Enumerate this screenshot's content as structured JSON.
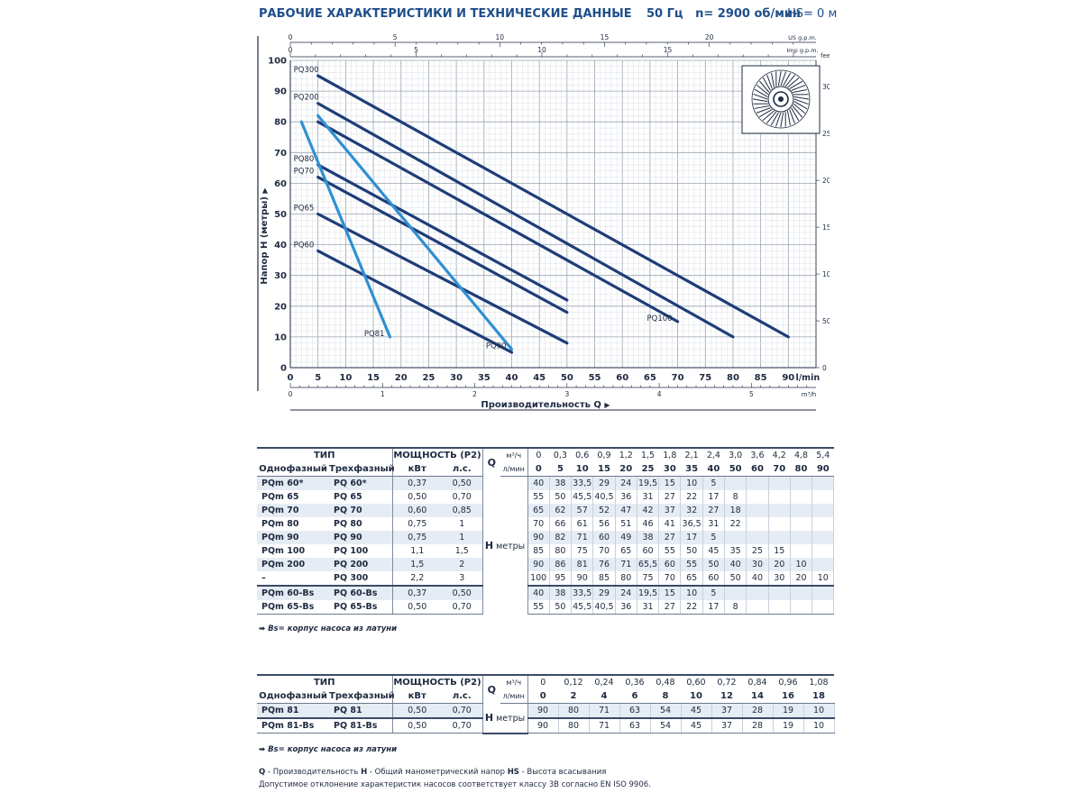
{
  "header": {
    "title": "РАБОЧИЕ ХАРАКТЕРИСТИКИ И ТЕХНИЧЕСКИЕ ДАННЫЕ",
    "freq": "50 Гц",
    "speed": "n= 2900 об/мин",
    "hs": "HS= 0 м"
  },
  "colors": {
    "dark_curve": "#1e3d78",
    "light_curve": "#2f8fd2",
    "grid": "#bfc6cf",
    "text": "#1e2a40"
  },
  "chart_data": {
    "type": "line",
    "title": "",
    "xlabel": "Производительность Q",
    "ylabel": "Напор H (метры)",
    "x_unit": "l/min",
    "xlim": [
      0,
      95
    ],
    "ylim": [
      0,
      100
    ],
    "x_ticks": [
      0,
      5,
      10,
      15,
      20,
      25,
      30,
      35,
      40,
      45,
      50,
      55,
      60,
      65,
      70,
      75,
      80,
      85,
      90
    ],
    "y_ticks": [
      0,
      10,
      20,
      30,
      40,
      50,
      60,
      70,
      80,
      90,
      100
    ],
    "feet_unit": "feet",
    "feet_ticks": [
      0,
      50,
      100,
      150,
      200,
      250,
      300
    ],
    "m3h_unit": "m³/h",
    "m3h_ticks": [
      0,
      1,
      2,
      3,
      4,
      5
    ],
    "usgpm_unit": "US g.p.m.",
    "usgpm_ticks": [
      0,
      5,
      10,
      15,
      20
    ],
    "impgpm_unit": "Imp g.p.m.",
    "impgpm_ticks": [
      0,
      5,
      10,
      15
    ],
    "grid": true,
    "series": [
      {
        "name": "PQ300",
        "style": "dark",
        "label_side": "start",
        "x": [
          5,
          90
        ],
        "y": [
          95,
          10
        ]
      },
      {
        "name": "PQ200",
        "style": "dark",
        "label_side": "start",
        "x": [
          5,
          80
        ],
        "y": [
          86,
          10
        ]
      },
      {
        "name": "PQ100",
        "style": "dark",
        "label_side": "end",
        "x": [
          5,
          70
        ],
        "y": [
          80,
          15
        ]
      },
      {
        "name": "PQ80",
        "style": "dark",
        "label_side": "start",
        "x": [
          5,
          50
        ],
        "y": [
          66,
          22
        ]
      },
      {
        "name": "PQ70",
        "style": "dark",
        "label_side": "start",
        "x": [
          5,
          50
        ],
        "y": [
          62,
          18
        ]
      },
      {
        "name": "PQ65",
        "style": "dark",
        "label_side": "start",
        "x": [
          5,
          50
        ],
        "y": [
          50,
          8
        ]
      },
      {
        "name": "PQ60",
        "style": "dark",
        "label_side": "start",
        "x": [
          5,
          40
        ],
        "y": [
          38,
          5
        ]
      },
      {
        "name": "PQ90",
        "style": "light",
        "label_side": "end",
        "x": [
          5,
          40
        ],
        "y": [
          82,
          6
        ]
      },
      {
        "name": "PQ81",
        "style": "light",
        "label_side": "end",
        "x": [
          2,
          18
        ],
        "y": [
          80,
          10
        ]
      }
    ]
  },
  "table1": {
    "type_header": "ТИП",
    "power_header": "МОЩНОСТЬ (P2)",
    "single_phase": "Однофазный",
    "three_phase": "Трехфазный",
    "kw": "кВт",
    "hp": "л.с.",
    "q_symbol": "Q",
    "unit_m3h": "м³/ч",
    "unit_lmin": "л/мин",
    "h_symbol": "H",
    "h_unit": "метры",
    "m3h": [
      "0",
      "0,3",
      "0,6",
      "0,9",
      "1,2",
      "1,5",
      "1,8",
      "2,1",
      "2,4",
      "3,0",
      "3,6",
      "4,2",
      "4,8",
      "5,4"
    ],
    "lmin": [
      "0",
      "5",
      "10",
      "15",
      "20",
      "25",
      "30",
      "35",
      "40",
      "50",
      "60",
      "70",
      "80",
      "90"
    ],
    "rows": [
      {
        "single": "PQm 60*",
        "three": "PQ 60*",
        "kw": "0,37",
        "hp": "0,50",
        "h": [
          "40",
          "38",
          "33,5",
          "29",
          "24",
          "19,5",
          "15",
          "10",
          "5"
        ]
      },
      {
        "single": "PQm 65",
        "three": "PQ 65",
        "kw": "0,50",
        "hp": "0,70",
        "h": [
          "55",
          "50",
          "45,5",
          "40,5",
          "36",
          "31",
          "27",
          "22",
          "17",
          "8"
        ]
      },
      {
        "single": "PQm 70",
        "three": "PQ 70",
        "kw": "0,60",
        "hp": "0,85",
        "h": [
          "65",
          "62",
          "57",
          "52",
          "47",
          "42",
          "37",
          "32",
          "27",
          "18"
        ]
      },
      {
        "single": "PQm 80",
        "three": "PQ 80",
        "kw": "0,75",
        "hp": "1",
        "h": [
          "70",
          "66",
          "61",
          "56",
          "51",
          "46",
          "41",
          "36,5",
          "31",
          "22"
        ]
      },
      {
        "single": "PQm 90",
        "three": "PQ 90",
        "kw": "0,75",
        "hp": "1",
        "h": [
          "90",
          "82",
          "71",
          "60",
          "49",
          "38",
          "27",
          "17",
          "5"
        ]
      },
      {
        "single": "PQm 100",
        "three": "PQ 100",
        "kw": "1,1",
        "hp": "1,5",
        "h": [
          "85",
          "80",
          "75",
          "70",
          "65",
          "60",
          "55",
          "50",
          "45",
          "35",
          "25",
          "15"
        ]
      },
      {
        "single": "PQm 200",
        "three": "PQ 200",
        "kw": "1,5",
        "hp": "2",
        "h": [
          "90",
          "86",
          "81",
          "76",
          "71",
          "65,5",
          "60",
          "55",
          "50",
          "40",
          "30",
          "20",
          "10"
        ]
      },
      {
        "single": "–",
        "three": "PQ 300",
        "kw": "2,2",
        "hp": "3",
        "h": [
          "100",
          "95",
          "90",
          "85",
          "80",
          "75",
          "70",
          "65",
          "60",
          "50",
          "40",
          "30",
          "20",
          "10"
        ]
      },
      {
        "single": "PQm 60-Bs",
        "three": "PQ 60-Bs",
        "kw": "0,37",
        "hp": "0,50",
        "h": [
          "40",
          "38",
          "33,5",
          "29",
          "24",
          "19,5",
          "15",
          "10",
          "5"
        ]
      },
      {
        "single": "PQm 65-Bs",
        "three": "PQ 65-Bs",
        "kw": "0,50",
        "hp": "0,70",
        "h": [
          "55",
          "50",
          "45,5",
          "40,5",
          "36",
          "31",
          "27",
          "22",
          "17",
          "8"
        ]
      }
    ],
    "note": "➡ Bs= корпус насоса из латуни"
  },
  "table2": {
    "type_header": "ТИП",
    "power_header": "МОЩНОСТЬ (P2)",
    "single_phase": "Однофазный",
    "three_phase": "Трехфазный",
    "kw": "кВт",
    "hp": "л.с.",
    "q_symbol": "Q",
    "unit_m3h": "м³/ч",
    "unit_lmin": "л/мин",
    "h_symbol": "H",
    "h_unit": "метры",
    "m3h": [
      "0",
      "0,12",
      "0,24",
      "0,36",
      "0,48",
      "0,60",
      "0,72",
      "0,84",
      "0,96",
      "1,08"
    ],
    "lmin": [
      "0",
      "2",
      "4",
      "6",
      "8",
      "10",
      "12",
      "14",
      "16",
      "18"
    ],
    "rows": [
      {
        "single": "PQm 81",
        "three": "PQ 81",
        "kw": "0,50",
        "hp": "0,70",
        "h": [
          "90",
          "80",
          "71",
          "63",
          "54",
          "45",
          "37",
          "28",
          "19",
          "10"
        ]
      },
      {
        "single": "PQm 81-Bs",
        "three": "PQ 81-Bs",
        "kw": "0,50",
        "hp": "0,70",
        "h": [
          "90",
          "80",
          "71",
          "63",
          "54",
          "45",
          "37",
          "28",
          "19",
          "10"
        ]
      }
    ],
    "note": "➡ Bs= корпус насоса из латуни"
  },
  "legend": {
    "q": "Q",
    "q_text": " - Производительность  ",
    "h": "H",
    "h_text": " - Общий манометрический напор  ",
    "hs": "HS",
    "hs_text": " - Высота всасывания",
    "tolerance": "Допустимое отклонение характеристик насосов соответствует классу 3B согласно EN ISO 9906."
  }
}
